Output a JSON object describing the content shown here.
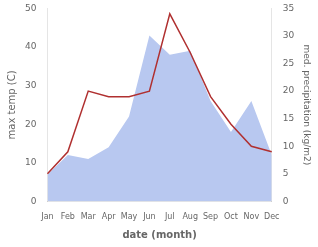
{
  "chart_data": {
    "type": "line",
    "xlabel": "date (month)",
    "ylabel": "max temp (C)",
    "y2label": "med. precipitation (kg/m2)",
    "categories": [
      "Jan",
      "Feb",
      "Mar",
      "Apr",
      "May",
      "Jun",
      "Jul",
      "Aug",
      "Sep",
      "Oct",
      "Nov",
      "Dec"
    ],
    "series": [
      {
        "type": "area",
        "color": "#b8c8f0",
        "values": [
          7,
          12,
          11,
          14,
          22,
          43,
          38,
          39,
          26,
          18,
          26,
          12
        ]
      },
      {
        "type": "line",
        "color": "#b03030",
        "axis": "y2",
        "values": [
          5,
          9,
          20,
          19,
          19,
          20,
          34,
          27,
          19,
          14,
          10,
          9
        ]
      }
    ],
    "ylim": [
      0,
      50
    ],
    "yticks": [
      0,
      10,
      20,
      30,
      40,
      50
    ],
    "y2lim": [
      0,
      35
    ],
    "y2ticks": [
      0,
      5,
      10,
      15,
      20,
      25,
      30,
      35
    ],
    "grid": false
  }
}
